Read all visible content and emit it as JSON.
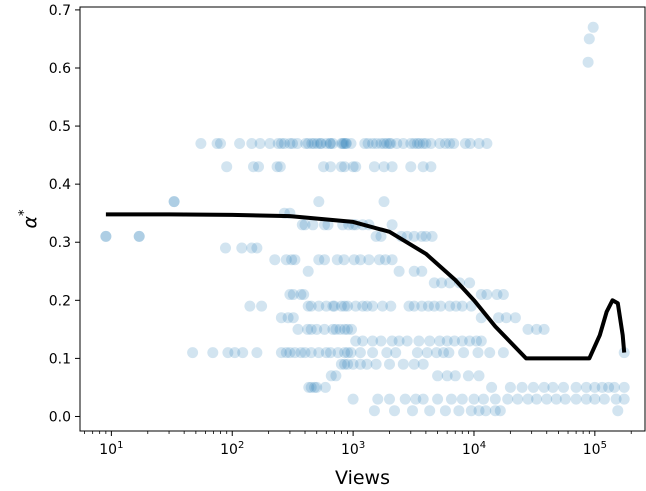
{
  "chart_data": {
    "type": "scatter",
    "xscale": "log",
    "xlabel": "Views",
    "ylabel": "α*",
    "ylabel_base": "α",
    "ylabel_sup": "*",
    "xlim": [
      5.5,
      260000
    ],
    "ylim": [
      -0.025,
      0.705
    ],
    "yticks": [
      0.0,
      0.1,
      0.2,
      0.3,
      0.4,
      0.5,
      0.6,
      0.7
    ],
    "ytick_labels": [
      "0.0",
      "0.1",
      "0.2",
      "0.3",
      "0.4",
      "0.5",
      "0.6",
      "0.7"
    ],
    "xticks": [
      10,
      100,
      1000,
      10000,
      100000
    ],
    "xtick_labels": [
      {
        "base": "10",
        "exp": "1"
      },
      {
        "base": "10",
        "exp": "2"
      },
      {
        "base": "10",
        "exp": "3"
      },
      {
        "base": "10",
        "exp": "4"
      },
      {
        "base": "10",
        "exp": "5"
      }
    ],
    "grid": false,
    "colors": {
      "points": "#1f77b4",
      "curve": "#000000"
    },
    "points_alpha": 0.2,
    "series": [
      {
        "kind": "scatter",
        "x": [
          9,
          17,
          33,
          55,
          75,
          80,
          115,
          145,
          170,
          205,
          240,
          255,
          270,
          300,
          315,
          345,
          405,
          425,
          455,
          475,
          505,
          535,
          545,
          600,
          645,
          650,
          680,
          800,
          820,
          840,
          870,
          880,
          960,
          1250,
          1330,
          1450,
          1560,
          1700,
          1800,
          1900,
          2000,
          2050,
          2300,
          2600,
          3000,
          3200,
          3400,
          3550,
          3800,
          4000,
          4400,
          5200,
          5800,
          6300,
          6800,
          8500,
          9300,
          11000,
          12800,
          9,
          17,
          33,
          90,
          150,
          165,
          235,
          250,
          570,
          650,
          800,
          850,
          1000,
          1050,
          1500,
          1800,
          2100,
          3000,
          3800,
          4400,
          270,
          300,
          380,
          400,
          465,
          520,
          580,
          620,
          820,
          920,
          1000,
          1050,
          1200,
          1350,
          1550,
          1700,
          1800,
          2100,
          2500,
          2800,
          3200,
          3700,
          4000,
          4500,
          88,
          120,
          145,
          160,
          225,
          280,
          310,
          330,
          425,
          520,
          580,
          740,
          840,
          1020,
          1150,
          1350,
          1650,
          1850,
          2100,
          2400,
          3200,
          3700,
          4700,
          5400,
          6300,
          7600,
          9200,
          11500,
          12800,
          15500,
          17500,
          140,
          175,
          300,
          320,
          370,
          390,
          425,
          450,
          520,
          600,
          680,
          700,
          800,
          850,
          900,
          1050,
          1200,
          1300,
          1450,
          1750,
          2050,
          2900,
          3200,
          3700,
          4200,
          4700,
          5300,
          6300,
          7100,
          8000,
          9500,
          11500,
          16000,
          18500,
          22000,
          28000,
          33000,
          38000,
          47,
          69,
          92,
          105,
          122,
          160,
          255,
          280,
          300,
          330,
          370,
          400,
          450,
          520,
          600,
          650,
          750,
          850,
          900,
          960,
          1150,
          1450,
          1900,
          2250,
          3400,
          4100,
          4900,
          5600,
          6200,
          8200,
          10800,
          13500,
          17500,
          175000,
          255,
          290,
          320,
          350,
          420,
          450,
          500,
          580,
          680,
          720,
          780,
          850,
          900,
          970,
          1050,
          1200,
          1450,
          1700,
          2100,
          2400,
          2800,
          3500,
          4300,
          5200,
          6000,
          6900,
          8000,
          9200,
          10500,
          11500,
          430,
          450,
          480,
          500,
          590,
          660,
          720,
          800,
          850,
          900,
          1000,
          1150,
          1300,
          1550,
          2000,
          2600,
          3200,
          3800,
          5000,
          6000,
          7000,
          9000,
          11000,
          14000,
          20000,
          25000,
          31000,
          38000,
          45000,
          55000,
          70000,
          85000,
          100000,
          115000,
          130000,
          145000,
          175000,
          1000,
          1600,
          2000,
          2700,
          3300,
          3800,
          5000,
          6500,
          8000,
          10000,
          12000,
          15000,
          19000,
          23000,
          28000,
          33000,
          40000,
          48000,
          57000,
          70000,
          85000,
          100000,
          120000,
          150000,
          175000,
          1500,
          2200,
          3100,
          4300,
          5800,
          7500,
          9500,
          11000,
          12500,
          15000,
          16500,
          155000,
          88000,
          97000,
          90000
        ],
        "y": [
          0.31,
          0.31,
          0.37,
          0.47,
          0.47,
          0.47,
          0.47,
          0.47,
          0.47,
          0.47,
          0.47,
          0.47,
          0.47,
          0.47,
          0.47,
          0.47,
          0.47,
          0.47,
          0.47,
          0.47,
          0.47,
          0.47,
          0.47,
          0.47,
          0.47,
          0.47,
          0.47,
          0.47,
          0.47,
          0.47,
          0.47,
          0.47,
          0.47,
          0.47,
          0.47,
          0.47,
          0.47,
          0.47,
          0.47,
          0.47,
          0.47,
          0.47,
          0.47,
          0.47,
          0.47,
          0.47,
          0.47,
          0.47,
          0.47,
          0.47,
          0.47,
          0.47,
          0.47,
          0.47,
          0.47,
          0.47,
          0.47,
          0.47,
          0.47,
          0.31,
          0.31,
          0.37,
          0.43,
          0.43,
          0.43,
          0.43,
          0.43,
          0.43,
          0.43,
          0.43,
          0.43,
          0.43,
          0.43,
          0.43,
          0.43,
          0.43,
          0.43,
          0.43,
          0.43,
          0.35,
          0.35,
          0.33,
          0.33,
          0.33,
          0.37,
          0.33,
          0.33,
          0.33,
          0.33,
          0.33,
          0.33,
          0.33,
          0.33,
          0.31,
          0.31,
          0.37,
          0.33,
          0.31,
          0.31,
          0.31,
          0.31,
          0.31,
          0.31,
          0.29,
          0.29,
          0.29,
          0.29,
          0.27,
          0.27,
          0.27,
          0.27,
          0.25,
          0.27,
          0.27,
          0.27,
          0.27,
          0.27,
          0.27,
          0.27,
          0.27,
          0.27,
          0.27,
          0.25,
          0.25,
          0.25,
          0.23,
          0.23,
          0.23,
          0.23,
          0.23,
          0.21,
          0.21,
          0.21,
          0.21,
          0.19,
          0.19,
          0.21,
          0.21,
          0.21,
          0.21,
          0.19,
          0.19,
          0.19,
          0.19,
          0.19,
          0.19,
          0.19,
          0.19,
          0.19,
          0.19,
          0.19,
          0.19,
          0.19,
          0.19,
          0.19,
          0.19,
          0.19,
          0.19,
          0.19,
          0.19,
          0.19,
          0.19,
          0.19,
          0.19,
          0.19,
          0.17,
          0.17,
          0.17,
          0.17,
          0.15,
          0.15,
          0.15,
          0.11,
          0.11,
          0.11,
          0.11,
          0.11,
          0.11,
          0.11,
          0.11,
          0.11,
          0.11,
          0.11,
          0.11,
          0.11,
          0.11,
          0.11,
          0.11,
          0.11,
          0.11,
          0.11,
          0.11,
          0.11,
          0.11,
          0.11,
          0.11,
          0.11,
          0.11,
          0.11,
          0.11,
          0.11,
          0.11,
          0.11,
          0.11,
          0.11,
          0.11,
          0.17,
          0.17,
          0.17,
          0.15,
          0.15,
          0.15,
          0.15,
          0.15,
          0.15,
          0.15,
          0.15,
          0.15,
          0.15,
          0.15,
          0.13,
          0.13,
          0.13,
          0.13,
          0.13,
          0.13,
          0.13,
          0.13,
          0.13,
          0.13,
          0.13,
          0.13,
          0.13,
          0.13,
          0.13,
          0.13,
          0.05,
          0.05,
          0.05,
          0.05,
          0.05,
          0.07,
          0.07,
          0.09,
          0.09,
          0.09,
          0.09,
          0.09,
          0.09,
          0.09,
          0.09,
          0.09,
          0.09,
          0.09,
          0.07,
          0.07,
          0.07,
          0.07,
          0.07,
          0.05,
          0.05,
          0.05,
          0.05,
          0.05,
          0.05,
          0.05,
          0.05,
          0.05,
          0.05,
          0.05,
          0.05,
          0.05,
          0.05,
          0.03,
          0.03,
          0.03,
          0.03,
          0.03,
          0.03,
          0.03,
          0.03,
          0.03,
          0.03,
          0.03,
          0.03,
          0.03,
          0.03,
          0.03,
          0.03,
          0.03,
          0.03,
          0.03,
          0.03,
          0.03,
          0.03,
          0.03,
          0.03,
          0.03,
          0.01,
          0.01,
          0.01,
          0.01,
          0.01,
          0.01,
          0.01,
          0.01,
          0.01,
          0.01,
          0.01,
          0.01,
          0.61,
          0.67,
          0.65
        ]
      },
      {
        "kind": "line",
        "x": [
          9,
          30,
          100,
          300,
          1000,
          2000,
          4000,
          7000,
          10000,
          15000,
          20000,
          27000,
          40000,
          60000,
          90000,
          110000,
          125000,
          140000,
          155000,
          170000,
          175000
        ],
        "y": [
          0.348,
          0.348,
          0.347,
          0.345,
          0.335,
          0.318,
          0.28,
          0.235,
          0.2,
          0.155,
          0.128,
          0.1,
          0.1,
          0.1,
          0.1,
          0.14,
          0.18,
          0.2,
          0.195,
          0.14,
          0.11
        ]
      }
    ]
  }
}
